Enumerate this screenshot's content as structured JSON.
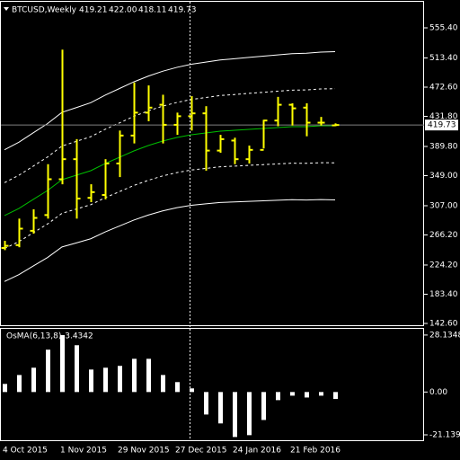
{
  "chart_data": [
    {
      "type": "ohlc",
      "title": "BTCUSD,Weekly",
      "last_labels": [
        "419.21",
        "422.00",
        "418.11",
        "419.73"
      ],
      "categories": [
        "4 Oct 2015",
        null,
        null,
        null,
        "1 Nov 2015",
        null,
        null,
        null,
        "29 Nov 2015",
        null,
        null,
        null,
        "27 Dec 2015",
        null,
        null,
        null,
        "24 Jan 2016",
        null,
        null,
        null,
        "21 Feb 2016",
        null,
        null,
        null
      ],
      "open": [
        248,
        252,
        272,
        294,
        344,
        372,
        318,
        322,
        366,
        405,
        437,
        448,
        420,
        432,
        436,
        384,
        398,
        372,
        385,
        426,
        448,
        444,
        423,
        419.21
      ],
      "high": [
        258,
        289,
        302,
        365,
        525,
        400,
        337,
        372,
        412,
        479,
        475,
        462,
        437,
        460,
        446,
        406,
        402,
        391,
        427,
        459,
        450,
        450,
        431,
        422.0
      ],
      "low": [
        245,
        249,
        268,
        289,
        337,
        289,
        312,
        316,
        347,
        394,
        425,
        394,
        406,
        412,
        356,
        381,
        365,
        366,
        387,
        418,
        419,
        404,
        419,
        418.11
      ],
      "close": [
        251,
        275,
        290,
        344,
        372,
        317,
        326,
        366,
        405,
        437,
        444,
        420,
        432,
        436,
        384,
        400,
        372,
        385,
        426,
        448,
        443,
        423,
        423,
        419.73
      ],
      "color": "#ffff00",
      "series": [
        {
          "color": "#ffffff",
          "style": "solid",
          "values": [
            385.2,
            395.7,
            408.8,
            421.8,
            437.4,
            444.1,
            450.9,
            461.4,
            470.7,
            480.0,
            488.0,
            494.8,
            500.3,
            504.6,
            507.6,
            510.6,
            512.3,
            514.1,
            515.9,
            517.6,
            519.4,
            519.9,
            521.6,
            522.1
          ]
        },
        {
          "color": "#ffffff",
          "style": "dashed",
          "values": [
            339.2,
            349.5,
            362.3,
            375.1,
            390.4,
            396.9,
            403.4,
            413.7,
            422.7,
            431.8,
            439.5,
            446.1,
            451.3,
            455.4,
            458.1,
            460.9,
            462.3,
            463.9,
            465.4,
            466.9,
            468.4,
            468.7,
            470.1,
            470.4
          ]
        },
        {
          "color": "#00c000",
          "style": "solid",
          "values": [
            293.2,
            303.2,
            315.8,
            328.3,
            343.4,
            349.6,
            355.9,
            365.9,
            374.7,
            383.5,
            391.0,
            397.3,
            402.3,
            406.1,
            408.6,
            411.1,
            412.3,
            413.6,
            414.9,
            416.1,
            417.4,
            417.4,
            418.6,
            418.6
          ]
        },
        {
          "color": "#ffffff",
          "style": "dashed",
          "values": [
            247.2,
            256.9,
            269.3,
            281.6,
            296.4,
            302.4,
            308.4,
            318.2,
            326.7,
            335.3,
            342.5,
            348.6,
            353.3,
            356.9,
            359.1,
            361.4,
            362.3,
            363.4,
            364.4,
            365.4,
            366.4,
            366.2,
            367.1,
            366.9
          ]
        },
        {
          "color": "#ffffff",
          "style": "solid",
          "values": [
            201.2,
            210.7,
            222.8,
            234.8,
            249.4,
            255.1,
            260.9,
            270.4,
            278.7,
            287.0,
            294.0,
            299.8,
            304.3,
            307.6,
            309.6,
            311.6,
            312.3,
            313.1,
            313.9,
            314.6,
            315.4,
            314.9,
            315.6,
            315.1
          ]
        }
      ],
      "ylim": [
        140.1,
        591.8
      ],
      "yticks": [
        {
          "value": 555.4,
          "label": "555.40"
        },
        {
          "value": 513.4,
          "label": "513.40"
        },
        {
          "value": 472.6,
          "label": "472.60"
        },
        {
          "value": 431.8,
          "label": "431.80"
        },
        {
          "value": 389.8,
          "label": "389.80"
        },
        {
          "value": 349,
          "label": "349.00"
        },
        {
          "value": 307,
          "label": "307.00"
        },
        {
          "value": 266.2,
          "label": "266.20"
        },
        {
          "value": 224.2,
          "label": "224.20"
        },
        {
          "value": 183.4,
          "label": "183.40"
        },
        {
          "value": 142.6,
          "label": "142.60"
        }
      ]
    },
    {
      "type": "bar",
      "title": "OsMA(6,13,8)",
      "color": "#ffffff",
      "values": [
        4.0,
        8.4,
        12.0,
        20.9,
        28.1,
        23.1,
        11.1,
        12.0,
        12.9,
        16.4,
        16.4,
        8.4,
        4.9,
        1.8,
        -11.1,
        -15.5,
        -22.2,
        -21.3,
        -13.8,
        -4.0,
        -1.8,
        -2.7,
        -1.8,
        -3.4342
      ],
      "ylim": [
        -23.8,
        31.2
      ],
      "yticks": [
        28.1348,
        {
          "value": 0,
          "label": "0.00"
        },
        -21.1391
      ]
    }
  ]
}
